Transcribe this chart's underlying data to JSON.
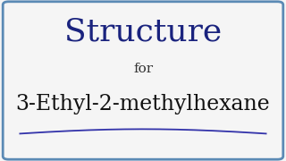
{
  "title": "Structure",
  "subtitle": "for",
  "compound": "3-Ethyl-2-methylhexane",
  "title_color": "#1a237e",
  "subtitle_color": "#333333",
  "compound_color": "#111111",
  "background_color": "#f5f5f5",
  "border_color": "#5b8ab5",
  "underline_color": "#3333aa",
  "title_fontsize": 26,
  "subtitle_fontsize": 11,
  "compound_fontsize": 17,
  "border_linewidth": 2.0
}
